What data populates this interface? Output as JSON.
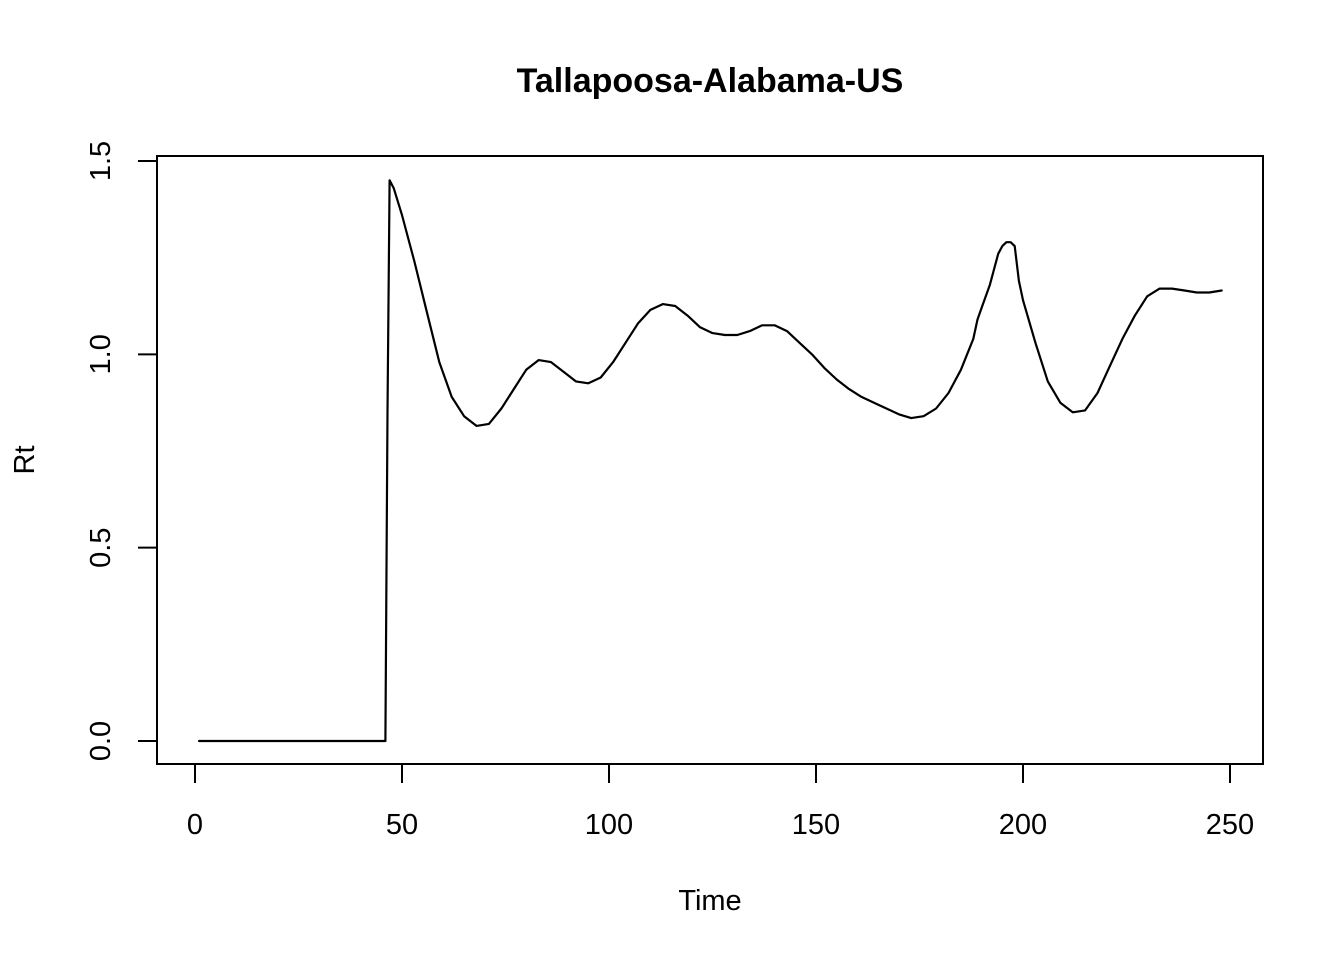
{
  "chart_data": {
    "type": "line",
    "title": "Tallapoosa-Alabama-US",
    "xlabel": "Time",
    "ylabel": "Rt",
    "xlim": [
      1,
      248
    ],
    "ylim": [
      0,
      1.5
    ],
    "x_ticks": [
      0,
      50,
      100,
      150,
      200,
      250
    ],
    "y_ticks": [
      0.0,
      0.5,
      1.0,
      1.5
    ],
    "x_tick_labels": [
      "0",
      "50",
      "100",
      "150",
      "200",
      "250"
    ],
    "y_tick_labels": [
      "0.0",
      "0.5",
      "1.0",
      "1.5"
    ],
    "grid": false,
    "legend": "none",
    "line_color": "#000000",
    "series": [
      {
        "x": [
          1,
          10,
          20,
          30,
          40,
          46,
          46.5,
          47,
          48,
          50,
          53,
          56,
          59,
          62,
          65,
          68,
          71,
          74,
          77,
          80,
          83,
          86,
          89,
          92,
          95,
          98,
          101,
          104,
          107,
          110,
          113,
          116,
          119,
          122,
          125,
          128,
          131,
          134,
          137,
          140,
          143,
          146,
          149,
          152,
          155,
          158,
          161,
          164,
          167,
          170,
          173,
          176,
          179,
          182,
          185,
          188,
          189,
          190,
          192,
          194,
          195,
          196,
          197,
          198,
          199,
          200,
          203,
          206,
          209,
          212,
          215,
          218,
          221,
          224,
          227,
          230,
          233,
          236,
          239,
          242,
          245,
          248
        ],
        "y": [
          0,
          0,
          0,
          0,
          0,
          0,
          0.85,
          1.45,
          1.43,
          1.36,
          1.24,
          1.11,
          0.98,
          0.89,
          0.84,
          0.815,
          0.82,
          0.86,
          0.91,
          0.96,
          0.985,
          0.98,
          0.955,
          0.93,
          0.925,
          0.94,
          0.98,
          1.03,
          1.08,
          1.115,
          1.13,
          1.125,
          1.1,
          1.07,
          1.055,
          1.05,
          1.05,
          1.06,
          1.075,
          1.075,
          1.06,
          1.03,
          1.0,
          0.965,
          0.935,
          0.91,
          0.89,
          0.875,
          0.86,
          0.845,
          0.835,
          0.84,
          0.86,
          0.9,
          0.96,
          1.04,
          1.09,
          1.12,
          1.18,
          1.26,
          1.28,
          1.29,
          1.29,
          1.28,
          1.19,
          1.14,
          1.03,
          0.93,
          0.875,
          0.85,
          0.855,
          0.9,
          0.97,
          1.04,
          1.1,
          1.15,
          1.17,
          1.17,
          1.165,
          1.16,
          1.16,
          1.165
        ]
      }
    ]
  }
}
